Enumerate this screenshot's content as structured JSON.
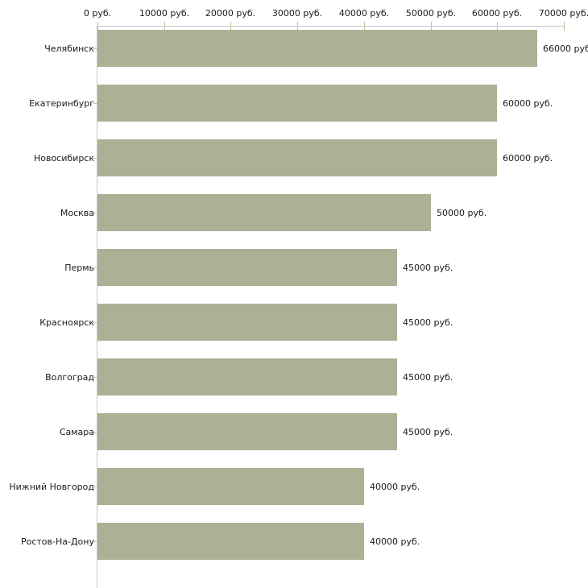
{
  "chart_data": {
    "type": "bar",
    "orientation": "horizontal",
    "title": "",
    "xlabel": "",
    "ylabel": "",
    "grid": false,
    "legend": false,
    "xlim": [
      0,
      70000
    ],
    "x_tick_values": [
      0,
      10000,
      20000,
      30000,
      40000,
      50000,
      60000,
      70000
    ],
    "x_tick_labels": [
      "0 руб.",
      "10000 руб.",
      "20000 руб.",
      "30000 руб.",
      "40000 руб.",
      "50000 руб.",
      "60000 руб.",
      "70000 руб."
    ],
    "categories": [
      "Челябинск",
      "Екатеринбург",
      "Новосибирск",
      "Москва",
      "Пермь",
      "Красноярск",
      "Волгоград",
      "Самара",
      "Нижний Новгород",
      "Ростов-На-Дону"
    ],
    "values": [
      66000,
      60000,
      60000,
      50000,
      45000,
      45000,
      45000,
      45000,
      40000,
      40000
    ],
    "value_labels": [
      "66000 руб",
      "60000 руб.",
      "60000 руб.",
      "50000 руб.",
      "45000 руб.",
      "45000 руб.",
      "45000 руб.",
      "45000 руб.",
      "40000 руб.",
      "40000 руб."
    ],
    "colors": {
      "bar": "#acb195",
      "axis_line": "#c6c6c6",
      "tick": "#c2c29a",
      "text": "#1a1a1a",
      "background": "#ffffff"
    }
  }
}
